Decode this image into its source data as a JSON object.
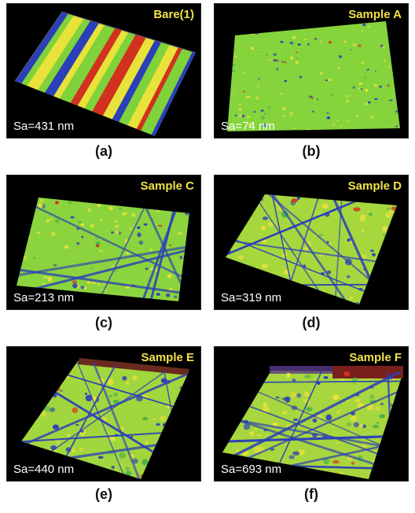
{
  "panels": [
    {
      "title": "Bare(1)",
      "sa": "Sa=431 nm",
      "caption": "(a)"
    },
    {
      "title": "Sample A",
      "sa": "Sa=74 nm",
      "caption": "(b)"
    },
    {
      "title": "Sample C",
      "sa": "Sa=213 nm",
      "caption": "(c)"
    },
    {
      "title": "Sample D",
      "sa": "Sa=319 nm",
      "caption": "(d)"
    },
    {
      "title": "Sample E",
      "sa": "Sa=440 nm",
      "caption": "(e)"
    },
    {
      "title": "Sample F",
      "sa": "Sa=693 nm",
      "caption": "(f)"
    }
  ],
  "colors": {
    "panel_background": "#000000",
    "title_text": "#f2e14a",
    "sa_text": "#ffffff",
    "surface_green": "#7fd23a",
    "surface_yellow": "#e8e23a",
    "surface_blue": "#2b3fb8",
    "surface_red": "#d2311f"
  }
}
